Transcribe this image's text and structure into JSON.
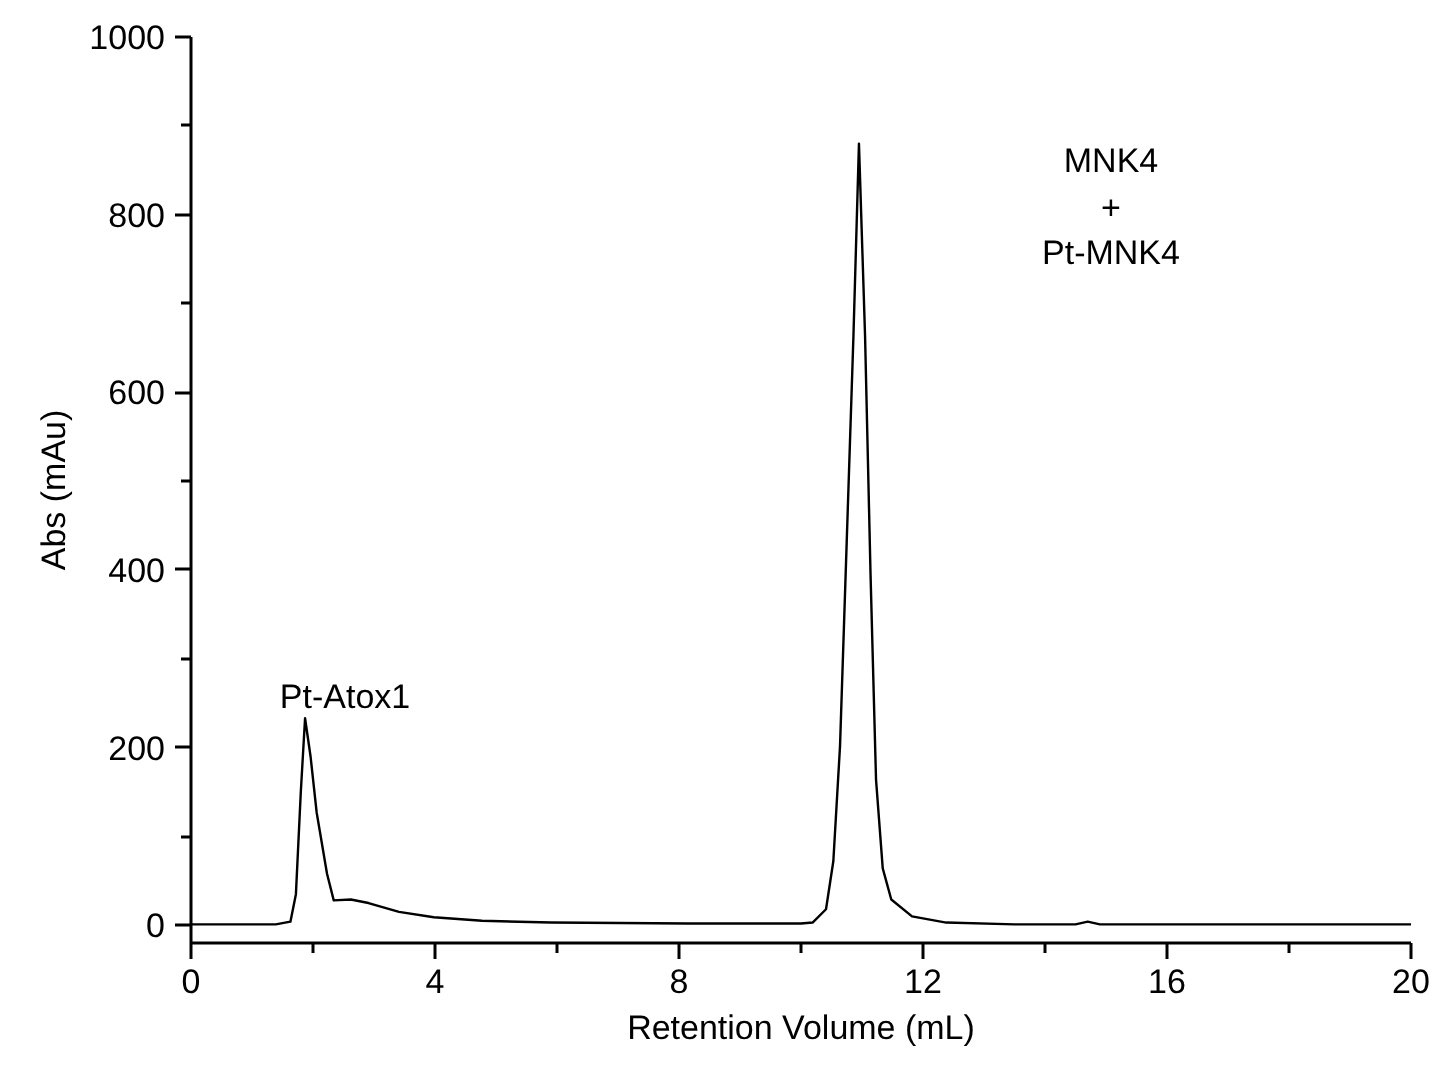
{
  "chart_data": {
    "type": "line",
    "xlabel": "Retention Volume (mL)",
    "ylabel": "Abs (mAu)",
    "xlim": [
      0,
      20
    ],
    "ylim": [
      -20,
      1000
    ],
    "xticks": [
      0,
      4,
      8,
      12,
      16,
      20
    ],
    "yticks": [
      0,
      200,
      400,
      600,
      800,
      1000
    ],
    "grid": false,
    "marker": "none",
    "line_style": "solid",
    "x": [
      0,
      1.0,
      1.39,
      1.63,
      1.72,
      1.8,
      1.87,
      1.96,
      2.06,
      2.23,
      2.34,
      2.62,
      2.91,
      3.41,
      3.98,
      4.77,
      5.9,
      8.15,
      10.0,
      10.19,
      10.41,
      10.53,
      10.64,
      10.75,
      10.86,
      10.95,
      11.05,
      11.14,
      11.23,
      11.34,
      11.48,
      11.82,
      12.38,
      13.5,
      14.5,
      14.7,
      14.9,
      16.0,
      20.0
    ],
    "series": [
      {
        "color": "#000000",
        "values": [
          1,
          1,
          1,
          4,
          35,
          150,
          233,
          190,
          127,
          58,
          28,
          29,
          25,
          15,
          9,
          5,
          3,
          2,
          2,
          3,
          18,
          72,
          202,
          433,
          664,
          880,
          664,
          395,
          164,
          64,
          29,
          10,
          3,
          1,
          1,
          4,
          1,
          1,
          1
        ]
      }
    ],
    "annotations": [
      "Pt-Atox1",
      "MNK4\n+\nPt-MNK4"
    ]
  }
}
